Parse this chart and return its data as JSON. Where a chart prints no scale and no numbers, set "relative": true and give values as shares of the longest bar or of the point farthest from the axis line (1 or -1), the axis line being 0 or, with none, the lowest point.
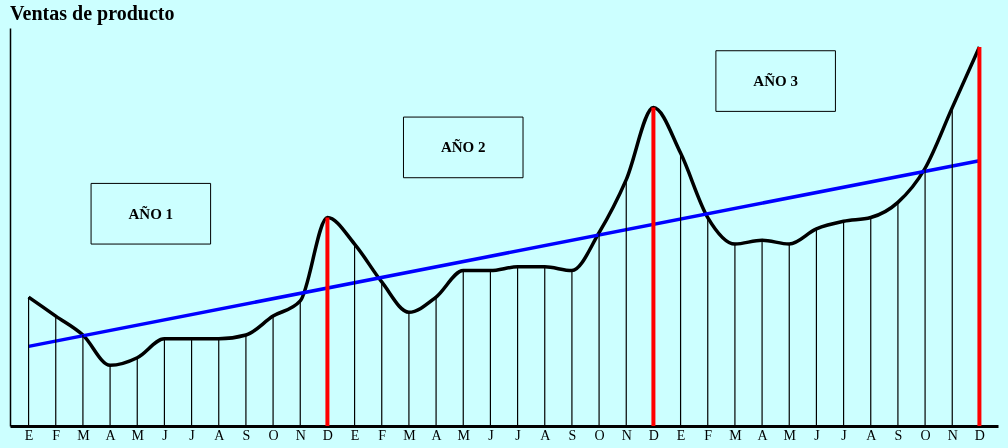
{
  "chart_data": {
    "type": "line",
    "title": "Ventas de producto",
    "relative": true,
    "tick_labels": "x",
    "grid": false,
    "marker": "none",
    "categories": [
      "E",
      "F",
      "M",
      "A",
      "M",
      "J",
      "J",
      "A",
      "S",
      "O",
      "N",
      "D",
      "E",
      "F",
      "M",
      "A",
      "M",
      "J",
      "J",
      "A",
      "S",
      "O",
      "N",
      "D",
      "E",
      "F",
      "M",
      "A",
      "M",
      "J",
      "J",
      "A",
      "S",
      "O",
      "N",
      "D"
    ],
    "series": [
      {
        "type": "bar",
        "colors": [
          "#000000",
          "#000000",
          "#000000",
          "#000000",
          "#000000",
          "#000000",
          "#000000",
          "#000000",
          "#000000",
          "#000000",
          "#000000",
          "#ff0000",
          "#000000",
          "#000000",
          "#000000",
          "#000000",
          "#000000",
          "#000000",
          "#000000",
          "#000000",
          "#000000",
          "#000000",
          "#000000",
          "#ff0000",
          "#000000",
          "#000000",
          "#000000",
          "#000000",
          "#000000",
          "#000000",
          "#000000",
          "#000000",
          "#000000",
          "#000000",
          "#000000",
          "#ff0000"
        ],
        "values": [
          0.34,
          0.29,
          0.24,
          0.16,
          0.18,
          0.23,
          0.23,
          0.23,
          0.24,
          0.29,
          0.33,
          0.55,
          0.48,
          0.38,
          0.3,
          0.34,
          0.41,
          0.41,
          0.42,
          0.42,
          0.41,
          0.51,
          0.65,
          0.84,
          0.72,
          0.55,
          0.48,
          0.49,
          0.48,
          0.52,
          0.54,
          0.55,
          0.59,
          0.68,
          0.84,
          1
        ]
      },
      {
        "color": "#000000",
        "values": [
          0.34,
          0.29,
          0.24,
          0.16,
          0.18,
          0.23,
          0.23,
          0.23,
          0.24,
          0.29,
          0.33,
          0.55,
          0.48,
          0.38,
          0.3,
          0.34,
          0.41,
          0.41,
          0.42,
          0.42,
          0.41,
          0.51,
          0.65,
          0.84,
          0.72,
          0.55,
          0.48,
          0.49,
          0.48,
          0.52,
          0.54,
          0.55,
          0.59,
          0.68,
          0.84,
          1
        ]
      },
      {
        "color": "#0000ff",
        "values": [
          0.21,
          null,
          null,
          null,
          null,
          null,
          null,
          null,
          null,
          null,
          null,
          null,
          null,
          null,
          null,
          null,
          null,
          null,
          null,
          null,
          null,
          null,
          null,
          null,
          null,
          null,
          null,
          null,
          null,
          null,
          null,
          null,
          null,
          null,
          null,
          0.7
        ]
      }
    ],
    "annotations": [
      "AÑO 1",
      "AÑO 2",
      "AÑO 3"
    ]
  }
}
